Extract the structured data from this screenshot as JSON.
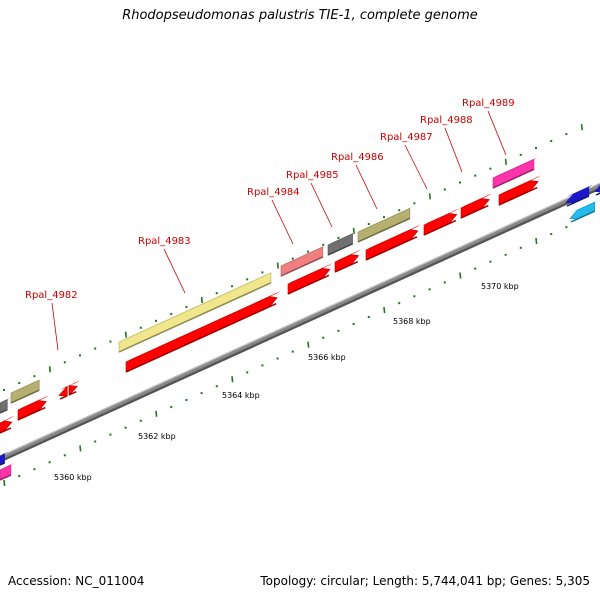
{
  "title": "Rhodopseudomonas palustris TIE-1, complete genome",
  "accession": "Accession: NC_011004",
  "summary": "Topology: circular; Length: 5,744,041 bp; Genes: 5,305",
  "colors": {
    "cds": "#ff0000",
    "gene_label": "#cc0000",
    "tick": "#1a7a1a",
    "backbone": "#888888",
    "pseudogene": "#f0e68c",
    "olive": "#b5b070",
    "pink": "#f08080",
    "magenta": "#ff33aa",
    "blue": "#1a1acc",
    "cyan": "#22bbee",
    "gray": "#707070"
  },
  "gene_labels": [
    "Rpal_4982",
    "Rpal_4983",
    "Rpal_4984",
    "Rpal_4985",
    "Rpal_4986",
    "Rpal_4987",
    "Rpal_4988",
    "Rpal_4989"
  ],
  "kbp_labels": [
    "5360 kbp",
    "5362 kbp",
    "5364 kbp",
    "5366 kbp",
    "5368 kbp",
    "5370 kbp"
  ]
}
